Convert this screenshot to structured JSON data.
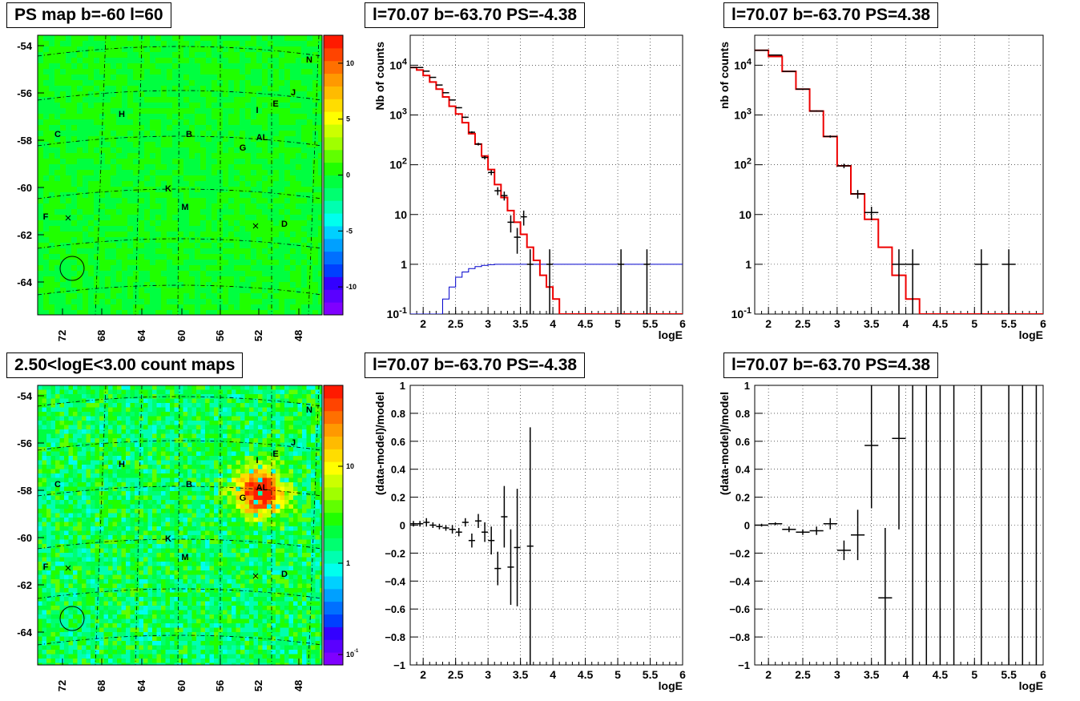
{
  "titles": {
    "tl": "PS map b=-60 l=60",
    "tm": "l=70.07 b=-63.70 PS=-4.38",
    "tr": "l=70.07 b=-63.70 PS=4.38",
    "bl": "2.50<logE<3.00 count maps",
    "bm": "l=70.07 b=-63.70 PS=-4.38",
    "br": "l=70.07 b=-63.70 PS=4.38"
  },
  "chart_data": [
    {
      "id": "ps_map",
      "type": "heatmap",
      "title": "PS map b=-60 l=60",
      "x_ticks": [
        "72",
        "68",
        "64",
        "60",
        "56",
        "52",
        "48"
      ],
      "y_ticks": [
        "-54",
        "-56",
        "-58",
        "-60",
        "-62",
        "-64"
      ],
      "colorbar_ticks": [
        "10",
        "5",
        "0",
        "-5",
        "-10"
      ],
      "colorbar_range": [
        -12.5,
        12.5
      ],
      "base_value": 0,
      "source_labels": [
        "N",
        "J",
        "I",
        "E",
        "H",
        "C",
        "B",
        "AL",
        "G",
        "K",
        "M",
        "F",
        "D"
      ],
      "circle_marker": true
    },
    {
      "id": "spectrum_neg",
      "type": "line",
      "title": "l=70.07 b=-63.70 PS=-4.38",
      "xlabel": "logE",
      "ylabel": "Nb of counts",
      "xlim": [
        1.8,
        6.0
      ],
      "ylim": [
        0.1,
        40000
      ],
      "yscale": "log",
      "x_ticks": [
        "2",
        "2.5",
        "3",
        "3.5",
        "4",
        "4.5",
        "5",
        "5.5",
        "6"
      ],
      "y_ticks": [
        "10^4",
        "10^3",
        "10^2",
        "10",
        "1",
        "10^-1"
      ],
      "grid": true,
      "data": {
        "x": [
          1.8,
          1.9,
          2.0,
          2.1,
          2.2,
          2.3,
          2.4,
          2.5,
          2.6,
          2.7,
          2.8,
          2.9,
          3.0,
          3.1,
          3.2,
          3.3,
          3.4,
          3.5,
          3.6,
          3.7,
          3.8,
          3.9,
          4.0,
          4.1,
          4.2,
          4.3,
          4.4,
          4.5,
          4.6,
          4.7,
          4.8,
          4.9,
          5.0,
          5.1,
          5.2,
          5.3,
          5.4,
          5.5,
          5.6,
          5.7,
          5.8,
          5.9
        ],
        "y": [
          9000,
          9000,
          7600,
          5700,
          4000,
          2800,
          2000,
          1400,
          900,
          450,
          260,
          140,
          70,
          30,
          24,
          7,
          3.5,
          9,
          1,
          0,
          0,
          1,
          0,
          0,
          0,
          0,
          0,
          0,
          0,
          0,
          0,
          0,
          1,
          0,
          0,
          0,
          1,
          0,
          0,
          0,
          0,
          0
        ],
        "model": [
          9000,
          8000,
          6200,
          4600,
          3300,
          2300,
          1500,
          1050,
          700,
          420,
          260,
          150,
          80,
          40,
          22,
          12,
          7,
          4,
          2.2,
          1.2,
          0.6,
          0.35,
          0.2,
          0.1,
          0.1,
          0.1,
          0.1,
          0.1,
          0.1,
          0.1,
          0.1,
          0.1,
          0.1,
          0.1,
          0.1,
          0.1,
          0.1,
          0.1,
          0.1,
          0.1,
          0.1,
          0.1
        ],
        "ps_model": [
          0.05,
          0.05,
          0.05,
          0.05,
          0.1,
          0.2,
          0.35,
          0.55,
          0.7,
          0.82,
          0.9,
          0.95,
          0.98,
          1,
          1,
          1,
          1,
          1,
          1,
          1,
          1,
          1,
          1,
          1,
          1,
          1,
          1,
          1,
          1,
          1,
          1,
          1,
          1,
          1,
          1,
          1,
          1,
          1,
          1,
          1,
          1,
          1
        ]
      }
    },
    {
      "id": "spectrum_pos",
      "type": "line",
      "title": "l=70.07 b=-63.70 PS=4.38",
      "xlabel": "logE",
      "ylabel": "nb of counts",
      "xlim": [
        1.8,
        6.0
      ],
      "ylim": [
        0.1,
        40000
      ],
      "yscale": "log",
      "x_ticks": [
        "2",
        "2.5",
        "3",
        "3.5",
        "4",
        "4.5",
        "5",
        "5.5",
        "6"
      ],
      "y_ticks": [
        "10^4",
        "10^3",
        "10^2",
        "10",
        "1",
        "10^-1"
      ],
      "grid": true,
      "data": {
        "x": [
          1.8,
          2.0,
          2.2,
          2.4,
          2.6,
          2.8,
          3.0,
          3.2,
          3.4,
          3.6,
          3.8,
          4.0,
          4.2,
          4.4,
          4.6,
          4.8,
          5.0,
          5.2,
          5.4,
          5.6,
          5.8
        ],
        "y": [
          20000,
          16000,
          7500,
          3300,
          1200,
          370,
          95,
          26,
          11,
          0,
          1,
          1,
          0,
          0,
          0,
          0,
          1,
          0,
          1,
          0,
          0
        ],
        "model": [
          20000,
          15000,
          7500,
          3300,
          1200,
          370,
          95,
          26,
          8,
          2.2,
          0.6,
          0.2,
          0.1,
          0.1,
          0.1,
          0.1,
          0.1,
          0.1,
          0.1,
          0.1,
          0.1
        ]
      }
    },
    {
      "id": "countmap",
      "type": "heatmap",
      "title": "2.50<logE<3.00 count maps",
      "x_ticks": [
        "72",
        "68",
        "64",
        "60",
        "56",
        "52",
        "48"
      ],
      "y_ticks": [
        "-54",
        "-56",
        "-58",
        "-60",
        "-62",
        "-64"
      ],
      "colorbar_ticks": [
        "10",
        "1",
        "10^-1"
      ],
      "colorbar_scale": "log",
      "source_labels": [
        "N",
        "J",
        "I",
        "E",
        "H",
        "C",
        "B",
        "AL",
        "G",
        "K",
        "M",
        "F",
        "D"
      ],
      "circle_marker": true,
      "hotspot_label": "AL"
    },
    {
      "id": "resid_neg",
      "type": "scatter",
      "title": "l=70.07 b=-63.70 PS=-4.38",
      "xlabel": "logE",
      "ylabel": "(data-model)/model",
      "xlim": [
        1.8,
        6.0
      ],
      "ylim": [
        -1,
        1
      ],
      "x_ticks": [
        "2",
        "2.5",
        "3",
        "3.5",
        "4",
        "4.5",
        "5",
        "5.5",
        "6"
      ],
      "y_ticks": [
        "1",
        "0.8",
        "0.6",
        "0.4",
        "0.2",
        "0",
        "−0.2",
        "−0.4",
        "−0.6",
        "−0.8",
        "−1"
      ],
      "grid": true,
      "data": {
        "x": [
          1.85,
          1.95,
          2.05,
          2.15,
          2.25,
          2.35,
          2.45,
          2.55,
          2.65,
          2.75,
          2.85,
          2.95,
          3.05,
          3.15,
          3.25,
          3.35,
          3.45,
          3.65
        ],
        "y": [
          0.01,
          0.01,
          0.02,
          0.0,
          -0.01,
          -0.02,
          -0.03,
          -0.05,
          0.02,
          -0.11,
          0.03,
          -0.05,
          -0.11,
          -0.31,
          0.06,
          -0.3,
          -0.16,
          -0.15
        ],
        "err": [
          0.02,
          0.02,
          0.03,
          0.02,
          0.02,
          0.02,
          0.03,
          0.03,
          0.03,
          0.05,
          0.05,
          0.07,
          0.1,
          0.12,
          0.22,
          0.27,
          0.42,
          0.85
        ]
      }
    },
    {
      "id": "resid_pos",
      "type": "scatter",
      "title": "l=70.07 b=-63.70 PS=4.38",
      "xlabel": "logE",
      "ylabel": "(data-model)/model",
      "xlim": [
        1.8,
        6.0
      ],
      "ylim": [
        -1,
        1
      ],
      "x_ticks": [
        "2",
        "2.5",
        "3",
        "3.5",
        "4",
        "4.5",
        "5",
        "5.5",
        "6"
      ],
      "y_ticks": [
        "1",
        "0.8",
        "0.6",
        "0.4",
        "0.2",
        "0",
        "−0.2",
        "−0.4",
        "−0.6",
        "−0.8",
        "−1"
      ],
      "grid": true,
      "data": {
        "x": [
          1.9,
          2.1,
          2.3,
          2.5,
          2.7,
          2.9,
          3.1,
          3.3,
          3.5,
          3.7,
          3.9
        ],
        "y": [
          0.0,
          0.01,
          -0.03,
          -0.05,
          -0.04,
          0.01,
          -0.18,
          -0.07,
          0.57,
          -0.52,
          0.62
        ],
        "err": [
          0.01,
          0.01,
          0.02,
          0.02,
          0.03,
          0.04,
          0.07,
          0.18,
          0.45,
          0.5,
          0.65
        ]
      },
      "full_error_bars_x": [
        4.1,
        4.3,
        4.5,
        4.7,
        5.1,
        5.5,
        5.7,
        5.9
      ]
    }
  ]
}
